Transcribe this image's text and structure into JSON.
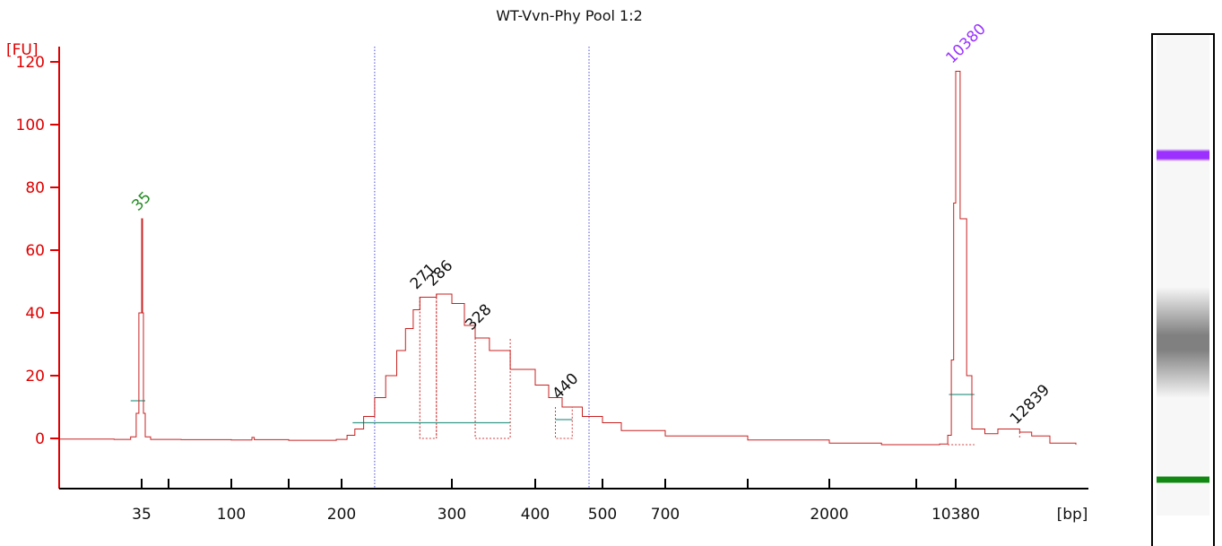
{
  "chart_data": {
    "type": "line",
    "title": "WT-Vvn-Phy Pool 1:2",
    "ylabel": "[FU]",
    "xlabel": "[bp]",
    "ylim": [
      -16,
      126
    ],
    "y_ticks": [
      0,
      20,
      40,
      60,
      80,
      100,
      120
    ],
    "x_ticks": [
      {
        "label": "35",
        "value": 35
      },
      {
        "label": "100",
        "value": 100
      },
      {
        "label": "200",
        "value": 200
      },
      {
        "label": "300",
        "value": 300
      },
      {
        "label": "400",
        "value": 400
      },
      {
        "label": "500",
        "value": 500
      },
      {
        "label": "700",
        "value": 700
      },
      {
        "label": "2000",
        "value": 2000
      },
      {
        "label": "10380",
        "value": 10380
      }
    ],
    "minor_ticks": [
      50,
      150,
      1000,
      7000
    ],
    "x_axis_end": 15000,
    "region_markers_bp": [
      230,
      480
    ],
    "trace": [
      [
        20,
        -0.2
      ],
      [
        30,
        -0.3
      ],
      [
        33,
        0.5
      ],
      [
        34,
        8
      ],
      [
        34.5,
        40
      ],
      [
        35,
        70
      ],
      [
        35.5,
        40
      ],
      [
        36,
        8
      ],
      [
        37,
        0.5
      ],
      [
        40,
        -0.3
      ],
      [
        60,
        -0.4
      ],
      [
        100,
        -0.5
      ],
      [
        118,
        0.3
      ],
      [
        120,
        -0.4
      ],
      [
        150,
        -0.6
      ],
      [
        195,
        -0.3
      ],
      [
        205,
        1
      ],
      [
        212,
        3
      ],
      [
        220,
        7
      ],
      [
        230,
        13
      ],
      [
        240,
        20
      ],
      [
        250,
        28
      ],
      [
        258,
        35
      ],
      [
        265,
        41
      ],
      [
        271,
        45
      ],
      [
        286,
        46
      ],
      [
        300,
        43
      ],
      [
        315,
        36
      ],
      [
        328,
        32
      ],
      [
        345,
        28
      ],
      [
        370,
        22
      ],
      [
        400,
        17
      ],
      [
        420,
        13
      ],
      [
        440,
        10
      ],
      [
        470,
        7
      ],
      [
        500,
        5
      ],
      [
        560,
        2.5
      ],
      [
        700,
        0.8
      ],
      [
        1000,
        -0.5
      ],
      [
        2000,
        -1.5
      ],
      [
        5000,
        -2
      ],
      [
        9000,
        -1.8
      ],
      [
        9700,
        1
      ],
      [
        10000,
        25
      ],
      [
        10200,
        75
      ],
      [
        10380,
        117
      ],
      [
        10550,
        70
      ],
      [
        10800,
        20
      ],
      [
        11000,
        3
      ],
      [
        11500,
        1.5
      ],
      [
        12000,
        3
      ],
      [
        12839,
        2
      ],
      [
        13300,
        0.8
      ],
      [
        14000,
        -1.5
      ],
      [
        15000,
        -2
      ]
    ],
    "peaks": [
      {
        "label": "35",
        "x": 35,
        "y": 70,
        "color": "#228b22"
      },
      {
        "label": "271",
        "x": 271,
        "y": 45,
        "color": "#111111"
      },
      {
        "label": "286",
        "x": 286,
        "y": 46,
        "color": "#111111"
      },
      {
        "label": "328",
        "x": 328,
        "y": 32,
        "color": "#111111"
      },
      {
        "label": "440",
        "x": 440,
        "y": 10,
        "color": "#111111"
      },
      {
        "label": "10380",
        "x": 10380,
        "y": 117,
        "color": "#9933ff"
      },
      {
        "label": "12839",
        "x": 12839,
        "y": 2,
        "color": "#111111"
      }
    ],
    "peak_windows": [
      {
        "x_from": 271,
        "x_to": 286,
        "y": 45
      },
      {
        "x_from": 328,
        "x_to": 370,
        "y": 32
      },
      {
        "x_from": 430,
        "x_to": 455,
        "y": 10
      }
    ],
    "baselines": [
      {
        "x_from": 33,
        "x_to": 37,
        "y": 12
      },
      {
        "x_from": 210,
        "x_to": 370,
        "y": 5
      },
      {
        "x_from": 430,
        "x_to": 455,
        "y": 6
      },
      {
        "x_from": 9800,
        "x_to": 11100,
        "y": 14
      }
    ],
    "colors": {
      "axis": "#e00000",
      "trace": "#c82020",
      "peak_window": "#d04040",
      "region_marker": "#4a4ad8",
      "baseline": "#3a9a8a",
      "lower_marker": "#228b22",
      "upper_marker": "#9933ff"
    },
    "gel_lane": {
      "bands": [
        {
          "name": "upper-marker",
          "position": 0.25,
          "color": "#9b30ff",
          "thickness": 0.014,
          "blur": 0.006
        },
        {
          "name": "library-smear",
          "position": 0.64,
          "color": "#808080",
          "thickness": 0.03,
          "blur": 0.1
        },
        {
          "name": "lower-marker",
          "position": 0.925,
          "color": "#118811",
          "thickness": 0.011,
          "blur": 0.002
        }
      ]
    }
  }
}
